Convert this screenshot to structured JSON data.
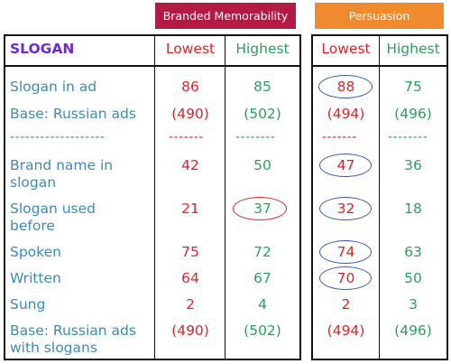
{
  "headers": {
    "memorability": "Branded Memorability",
    "persuasion": "Persuasion"
  },
  "columns": {
    "slogan": "SLOGAN",
    "mem_lowest": "Lowest",
    "mem_highest": "Highest",
    "per_lowest": "Lowest",
    "per_highest": "Highest"
  },
  "separator": {
    "label": "-------------------",
    "mem_lowest": "-------",
    "mem_highest": "--------",
    "per_lowest": "-------",
    "per_highest": "--------"
  },
  "rows": [
    {
      "label": "Slogan in ad",
      "mem_lowest": "86",
      "mem_highest": "85",
      "per_lowest": "88",
      "per_highest": "75"
    },
    {
      "label": "Base: Russian ads",
      "mem_lowest": "(490)",
      "mem_highest": "(502)",
      "per_lowest": "(494)",
      "per_highest": "(496)"
    },
    {
      "label_line1": "Brand name in",
      "label_line2": "slogan",
      "mem_lowest": "42",
      "mem_highest": "50",
      "per_lowest": "47",
      "per_highest": "36"
    },
    {
      "label_line1": "Slogan used",
      "label_line2": "before",
      "mem_lowest": "21",
      "mem_highest": "37",
      "per_lowest": "32",
      "per_highest": "18"
    },
    {
      "label": "Spoken",
      "mem_lowest": "75",
      "mem_highest": "72",
      "per_lowest": "74",
      "per_highest": "63"
    },
    {
      "label": "Written",
      "mem_lowest": "64",
      "mem_highest": "67",
      "per_lowest": "70",
      "per_highest": "50"
    },
    {
      "label": "Sung",
      "mem_lowest": "2",
      "mem_highest": "4",
      "per_lowest": "2",
      "per_highest": "3"
    },
    {
      "label_line1": "Base: Russian ads",
      "label_line2": "with slogans",
      "mem_lowest": "(490)",
      "mem_highest": "(502)",
      "per_lowest": "(494)",
      "per_highest": "(496)"
    }
  ],
  "colors": {
    "memorability_header": "#b31a45",
    "persuasion_header": "#ef8a2e",
    "label_text": "#3f8ab5",
    "slogan_header": "#6a2bd1",
    "lowest": "#d9262b",
    "highest": "#2e9e5e",
    "highlight_oval": "#3b59b0"
  },
  "highlighted_cells": [
    "row0.per_lowest",
    "row2.per_lowest",
    "row3.mem_highest",
    "row3.per_lowest",
    "row4.per_lowest",
    "row5.per_lowest"
  ]
}
